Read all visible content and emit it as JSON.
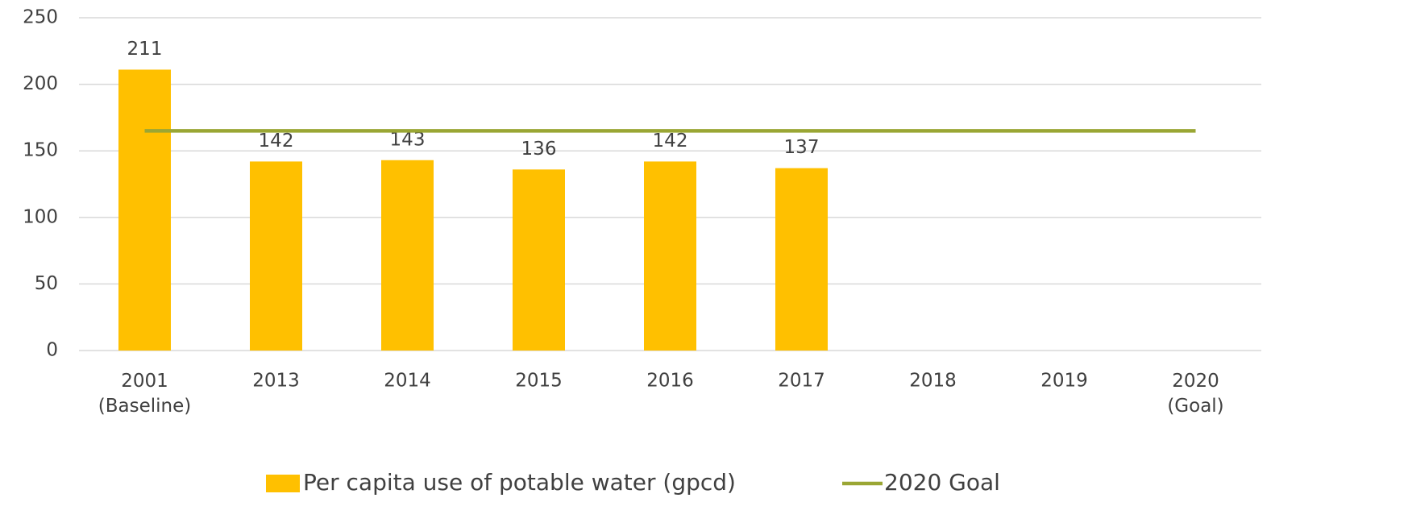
{
  "chart_data": {
    "type": "bar",
    "categories": [
      "2001\n(Baseline)",
      "2013",
      "2014",
      "2015",
      "2016",
      "2017",
      "2018",
      "2019",
      "2020\n(Goal)"
    ],
    "series": [
      {
        "name": "Per capita use of potable water (gpcd)",
        "type": "bar",
        "color": "#ffc000",
        "values": [
          211,
          142,
          143,
          136,
          142,
          137,
          null,
          null,
          null
        ]
      },
      {
        "name": "2020 Goal",
        "type": "line",
        "color": "#9aa634",
        "values": [
          165,
          165,
          165,
          165,
          165,
          165,
          165,
          165,
          165
        ]
      }
    ],
    "ylim": [
      0,
      250
    ],
    "yticks": [
      0,
      50,
      100,
      150,
      200,
      250
    ],
    "grid": true,
    "legend": "bottom"
  }
}
